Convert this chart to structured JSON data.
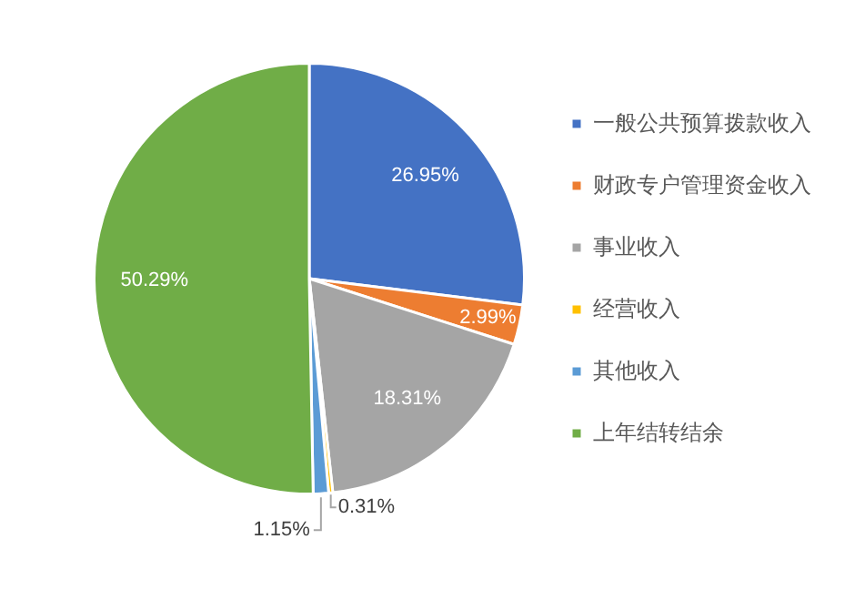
{
  "chart_data": {
    "type": "pie",
    "categories": [
      "一般公共预算拨款收入",
      "财政专户管理资金收入",
      "事业收入",
      "经营收入",
      "其他收入",
      "上年结转结余"
    ],
    "values": [
      26.95,
      2.99,
      18.31,
      0.31,
      1.15,
      50.29
    ],
    "value_labels": [
      "26.95%",
      "2.99%",
      "18.31%",
      "0.31%",
      "1.15%",
      "50.29%"
    ],
    "colors": [
      "#4472c4",
      "#ed7d31",
      "#a5a5a5",
      "#ffc000",
      "#5b9bd5",
      "#70ad47"
    ],
    "legend": "right"
  }
}
